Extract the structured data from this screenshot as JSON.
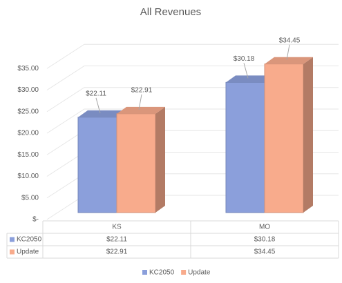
{
  "chart_data": {
    "type": "bar3d",
    "title": "All Revenues",
    "categories": [
      "KS",
      "MO"
    ],
    "series": [
      {
        "name": "KC2050",
        "color": "#8b9fdb",
        "values": [
          22.11,
          30.18
        ],
        "value_labels": [
          "$22.11",
          "$30.18"
        ]
      },
      {
        "name": "Update",
        "color": "#f8ab8c",
        "values": [
          22.91,
          34.45
        ],
        "value_labels": [
          "$22.91",
          "$34.45"
        ]
      }
    ],
    "ylim": [
      0,
      40
    ],
    "yticks": [
      {
        "value": 0,
        "label": "$-"
      },
      {
        "value": 5,
        "label": "$5.00"
      },
      {
        "value": 10,
        "label": "$10.00"
      },
      {
        "value": 15,
        "label": "$15.00"
      },
      {
        "value": 20,
        "label": "$20.00"
      },
      {
        "value": 25,
        "label": "$25.00"
      },
      {
        "value": 30,
        "label": "$30.00"
      },
      {
        "value": 35,
        "label": "$35.00"
      }
    ],
    "grid": true,
    "data_table": true,
    "legend": "bottom"
  }
}
